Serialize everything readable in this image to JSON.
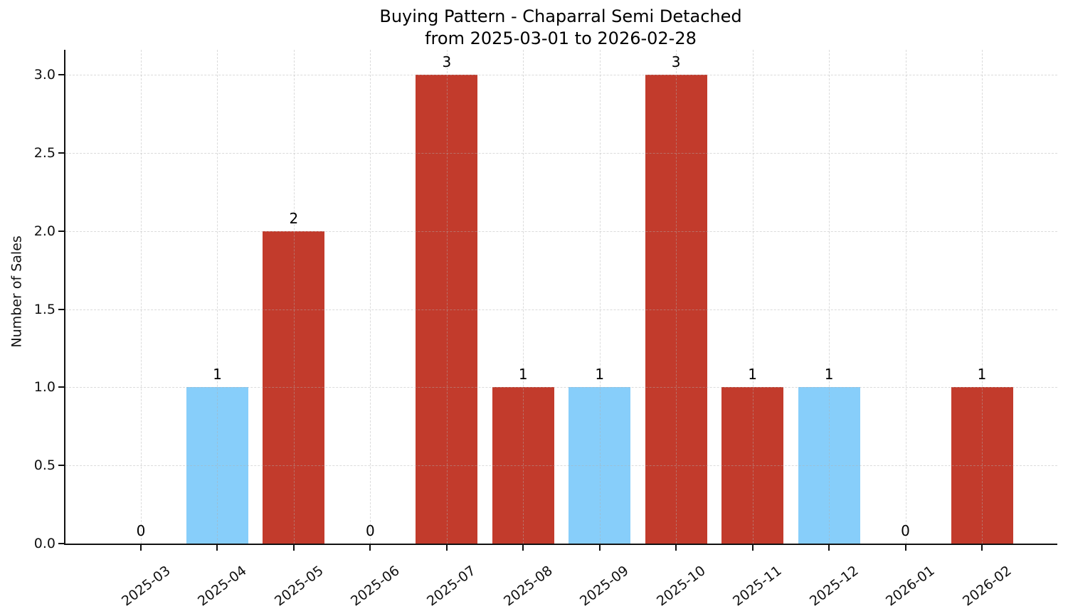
{
  "chart_data": {
    "type": "bar",
    "title_line1": "Buying Pattern - Chaparral Semi Detached",
    "title_line2": "from 2025-03-01 to 2026-02-28",
    "xlabel": "",
    "ylabel": "Number of Sales",
    "categories": [
      "2025-03",
      "2025-04",
      "2025-05",
      "2025-06",
      "2025-07",
      "2025-08",
      "2025-09",
      "2025-10",
      "2025-11",
      "2025-12",
      "2026-01",
      "2026-02"
    ],
    "values": [
      0,
      1,
      2,
      0,
      3,
      1,
      1,
      3,
      1,
      1,
      0,
      1
    ],
    "bar_value_labels": [
      "0",
      "1",
      "2",
      "0",
      "3",
      "1",
      "1",
      "3",
      "1",
      "1",
      "0",
      "1"
    ],
    "bar_colors": [
      null,
      "#87cefa",
      "#c23b2c",
      null,
      "#c23b2c",
      "#c23b2c",
      "#87cefa",
      "#c23b2c",
      "#c23b2c",
      "#87cefa",
      null,
      "#c23b2c"
    ],
    "yticks": [
      0,
      0.5,
      1,
      1.5,
      2,
      2.5,
      3
    ],
    "ytick_labels": [
      "0.0",
      "0.5",
      "1.0",
      "1.5",
      "2.0",
      "2.5",
      "3.0"
    ],
    "ylim": [
      0,
      3.16
    ],
    "xtick_rotation_deg": 37,
    "grid": {
      "style": "dashed",
      "color": "rgba(176,176,176,0.45)",
      "drawn_above_bars": true
    },
    "legend_position": "none",
    "colors": {
      "red_bar": "#c23b2c",
      "blue_bar": "#87cefa",
      "axis": "#111111",
      "text": "#000000",
      "background": "#ffffff"
    }
  }
}
